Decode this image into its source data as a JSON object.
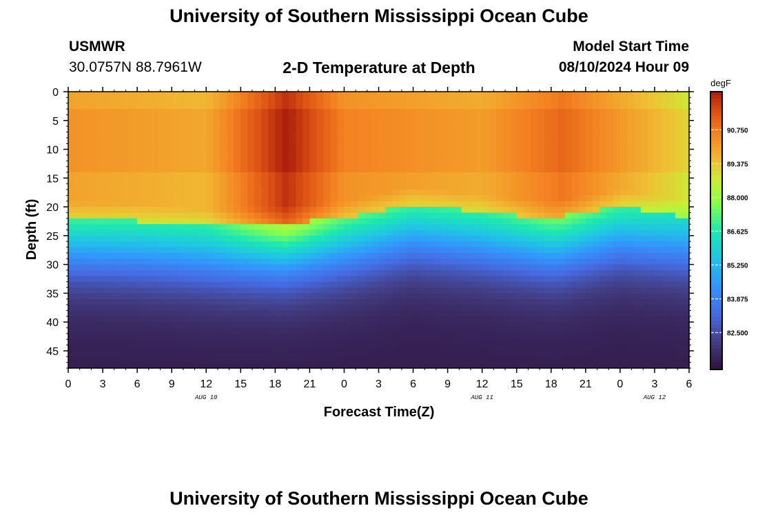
{
  "header": {
    "title": "University of Southern Mississippi Ocean Cube",
    "station_id": "USMWR",
    "coordinates": "30.0757N  88.7961W",
    "subtitle": "2-D Temperature at Depth",
    "model_start_label": "Model Start Time",
    "model_start_value": "08/10/2024 Hour 09"
  },
  "footer": {
    "title": "University of Southern Mississippi Ocean Cube"
  },
  "colors": {
    "hot": "#c0271a",
    "mid": "#a4ff2f",
    "cold": "#31194a"
  },
  "chart_data": {
    "type": "heatmap",
    "title": "2-D Temperature at Depth",
    "xlabel": "Forecast Time(Z)",
    "ylabel": "Depth (ft)",
    "x_range_hours_from_aug10_00z": [
      0,
      54
    ],
    "x_tick_labels": [
      "0",
      "3",
      "6",
      "9",
      "12",
      "15",
      "18",
      "21",
      "0",
      "3",
      "6",
      "9",
      "12",
      "15",
      "18",
      "21",
      "0",
      "3",
      "6"
    ],
    "date_labels": [
      {
        "label": "AUG 10",
        "hour": 12
      },
      {
        "label": "AUG 11",
        "hour": 36
      },
      {
        "label": "AUG 12",
        "hour": 51
      }
    ],
    "ylim": [
      0,
      48
    ],
    "y_ticks": [
      0,
      5,
      10,
      15,
      20,
      25,
      30,
      35,
      40,
      45
    ],
    "colorbar": {
      "units": "degF",
      "range": [
        81.0,
        92.3
      ],
      "tick_labels": [
        "90.750",
        "89.375",
        "88.000",
        "86.625",
        "85.250",
        "83.875",
        "82.500"
      ]
    },
    "thermocline_depth_ft": [
      {
        "hour": 0,
        "depth": 27
      },
      {
        "hour": 6,
        "depth": 27.5
      },
      {
        "hour": 12,
        "depth": 28.5
      },
      {
        "hour": 18,
        "depth": 28
      },
      {
        "hour": 24,
        "depth": 27
      },
      {
        "hour": 30,
        "depth": 24.5
      },
      {
        "hour": 36,
        "depth": 26
      },
      {
        "hour": 42,
        "depth": 27
      },
      {
        "hour": 48,
        "depth": 25
      },
      {
        "hour": 54,
        "depth": 27
      }
    ],
    "surface_temperature_degF": [
      {
        "hour": 0,
        "temp": 90.0
      },
      {
        "hour": 12,
        "temp": 89.6
      },
      {
        "hour": 19,
        "temp": 92.0
      },
      {
        "hour": 24,
        "temp": 90.3
      },
      {
        "hour": 36,
        "temp": 89.8
      },
      {
        "hour": 43,
        "temp": 90.8
      },
      {
        "hour": 54,
        "temp": 88.8
      }
    ],
    "bottom_temperature_degF": 81.3
  }
}
